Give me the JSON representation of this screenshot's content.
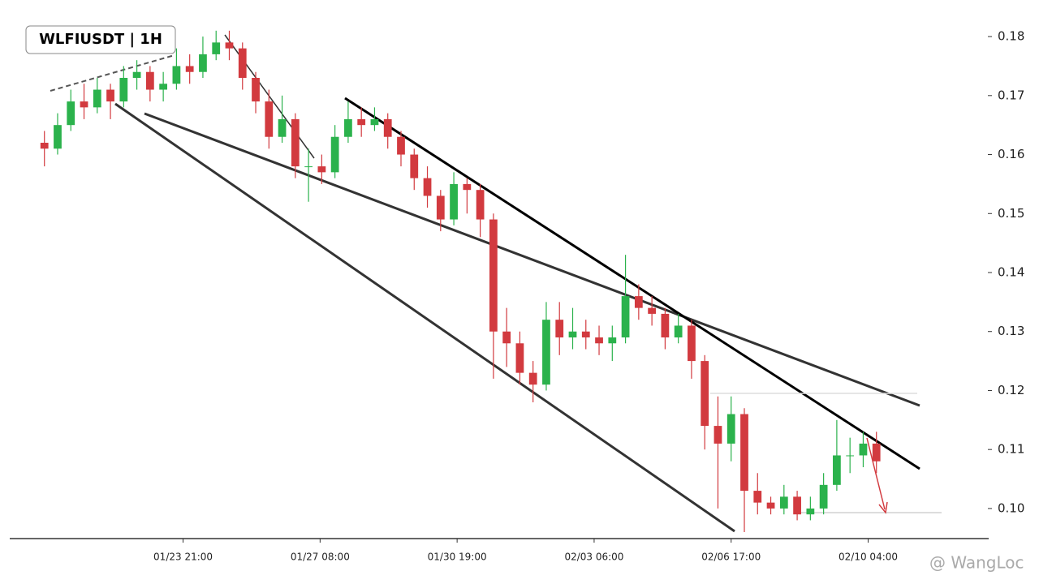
{
  "chart_data": {
    "type": "candlestick",
    "title": "WLFIUSDT | 1H",
    "watermark": "@ WangLoc",
    "x": [
      -84,
      -76,
      -68,
      -60,
      -52,
      -44,
      -36,
      -28,
      -20,
      -12,
      -4,
      4,
      12,
      20,
      28,
      36,
      44,
      52,
      60,
      68,
      76,
      84,
      92,
      100,
      108,
      116,
      124,
      132,
      140,
      148,
      156,
      164,
      172,
      180,
      188,
      196,
      204,
      212,
      220,
      228,
      236,
      244,
      252,
      260,
      268,
      276,
      284,
      292,
      300,
      308,
      316,
      324,
      332,
      340,
      348,
      356,
      364,
      372,
      380,
      388,
      396,
      404,
      412,
      420
    ],
    "open": [
      0.162,
      0.161,
      0.165,
      0.169,
      0.168,
      0.171,
      0.169,
      0.173,
      0.174,
      0.171,
      0.172,
      0.175,
      0.174,
      0.177,
      0.179,
      0.178,
      0.173,
      0.169,
      0.163,
      0.166,
      0.158,
      0.158,
      0.157,
      0.163,
      0.166,
      0.165,
      0.166,
      0.163,
      0.16,
      0.156,
      0.153,
      0.149,
      0.155,
      0.154,
      0.149,
      0.13,
      0.128,
      0.123,
      0.121,
      0.132,
      0.129,
      0.13,
      0.129,
      0.128,
      0.129,
      0.136,
      0.134,
      0.133,
      0.129,
      0.131,
      0.125,
      0.114,
      0.111,
      0.116,
      0.103,
      0.101,
      0.1,
      0.102,
      0.099,
      0.1,
      0.104,
      0.109,
      0.109,
      0.111
    ],
    "high": [
      0.164,
      0.167,
      0.171,
      0.172,
      0.173,
      0.172,
      0.175,
      0.176,
      0.175,
      0.174,
      0.178,
      0.177,
      0.18,
      0.181,
      0.181,
      0.179,
      0.174,
      0.171,
      0.17,
      0.167,
      0.161,
      0.16,
      0.165,
      0.169,
      0.168,
      0.168,
      0.167,
      0.164,
      0.161,
      0.158,
      0.154,
      0.157,
      0.156,
      0.155,
      0.15,
      0.134,
      0.13,
      0.125,
      0.135,
      0.135,
      0.134,
      0.132,
      0.131,
      0.131,
      0.143,
      0.138,
      0.136,
      0.134,
      0.133,
      0.132,
      0.126,
      0.119,
      0.119,
      0.117,
      0.106,
      0.102,
      0.104,
      0.103,
      0.102,
      0.106,
      0.115,
      0.112,
      0.113,
      0.113
    ],
    "low": [
      0.158,
      0.16,
      0.164,
      0.166,
      0.167,
      0.166,
      0.168,
      0.171,
      0.169,
      0.169,
      0.171,
      0.172,
      0.173,
      0.176,
      0.176,
      0.171,
      0.167,
      0.161,
      0.162,
      0.156,
      0.152,
      0.155,
      0.156,
      0.162,
      0.163,
      0.164,
      0.161,
      0.158,
      0.154,
      0.151,
      0.147,
      0.148,
      0.15,
      0.146,
      0.122,
      0.124,
      0.121,
      0.118,
      0.12,
      0.126,
      0.127,
      0.127,
      0.126,
      0.125,
      0.128,
      0.132,
      0.131,
      0.127,
      0.128,
      0.122,
      0.11,
      0.1,
      0.108,
      0.096,
      0.099,
      0.099,
      0.099,
      0.098,
      0.098,
      0.099,
      0.103,
      0.106,
      0.107,
      0.106
    ],
    "close": [
      0.161,
      0.165,
      0.169,
      0.168,
      0.171,
      0.169,
      0.173,
      0.174,
      0.171,
      0.172,
      0.175,
      0.174,
      0.177,
      0.179,
      0.178,
      0.173,
      0.169,
      0.163,
      0.166,
      0.158,
      0.158,
      0.157,
      0.163,
      0.166,
      0.165,
      0.166,
      0.163,
      0.16,
      0.156,
      0.153,
      0.149,
      0.155,
      0.154,
      0.149,
      0.13,
      0.128,
      0.123,
      0.121,
      0.132,
      0.129,
      0.13,
      0.129,
      0.128,
      0.129,
      0.136,
      0.134,
      0.133,
      0.129,
      0.131,
      0.125,
      0.114,
      0.111,
      0.116,
      0.103,
      0.101,
      0.1,
      0.102,
      0.099,
      0.1,
      0.104,
      0.109,
      0.109,
      0.111,
      0.108
    ],
    "up_color": "#2bb24c",
    "down_color": "#d23a3f",
    "xlim": [
      -105,
      488
    ],
    "xticks": [
      {
        "value": 0,
        "label": "01/23 21:00"
      },
      {
        "value": 83,
        "label": "01/27 08:00"
      },
      {
        "value": 166,
        "label": "01/30 19:00"
      },
      {
        "value": 249,
        "label": "02/03 06:00"
      },
      {
        "value": 332,
        "label": "02/06 17:00"
      },
      {
        "value": 415,
        "label": "02/10 04:00"
      }
    ],
    "ylim": [
      0.0949,
      0.1862
    ],
    "yticks": [
      {
        "value": 0.1,
        "label": "0.10"
      },
      {
        "value": 0.11,
        "label": "0.11"
      },
      {
        "value": 0.12,
        "label": "0.12"
      },
      {
        "value": 0.13,
        "label": "0.13"
      },
      {
        "value": 0.14,
        "label": "0.14"
      },
      {
        "value": 0.15,
        "label": "0.15"
      },
      {
        "value": 0.16,
        "label": "0.16"
      },
      {
        "value": 0.17,
        "label": "0.17"
      },
      {
        "value": 0.18,
        "label": "0.18"
      }
    ]
  }
}
